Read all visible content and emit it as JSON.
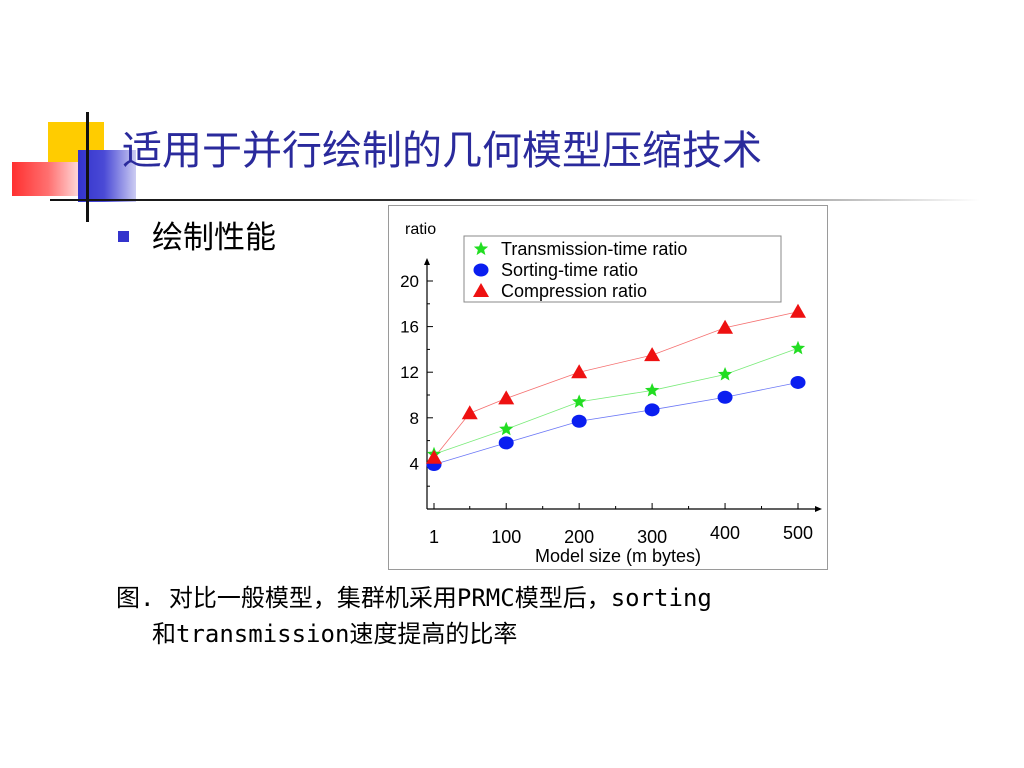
{
  "slide": {
    "title": "适用于并行绘制的几何模型压缩技术",
    "bullet": "绘制性能",
    "caption_line1": "图. 对比一般模型，集群机采用PRMC模型后，sorting",
    "caption_line2": "和transmission速度提高的比率"
  },
  "colors": {
    "title": "#2a2a9c",
    "bullet": "#3333cc",
    "deco_yellow": "#ffcc00",
    "deco_blue": "#3333cc",
    "deco_red": "#ff3030"
  },
  "chart_data": {
    "type": "scatter",
    "ylabel": "ratio",
    "xlabel": "Model  size (m bytes)",
    "x_ticks": [
      "1",
      "100",
      "200",
      "300",
      "400",
      "500"
    ],
    "y_ticks": [
      "4",
      "8",
      "12",
      "16",
      "20"
    ],
    "ylim": [
      0,
      22
    ],
    "xlim": [
      1,
      500
    ],
    "legend": "top-right",
    "grid": false,
    "series": [
      {
        "name": "Transmission-time ratio",
        "marker": "star",
        "color": "#22dd22",
        "points": [
          [
            1,
            4.8
          ],
          [
            100,
            7.0
          ],
          [
            200,
            9.4
          ],
          [
            300,
            10.4
          ],
          [
            400,
            11.8
          ],
          [
            500,
            14.1
          ]
        ]
      },
      {
        "name": "Sorting-time ratio",
        "marker": "circle",
        "color": "#0a1ef0",
        "points": [
          [
            1,
            3.9
          ],
          [
            100,
            5.8
          ],
          [
            200,
            7.7
          ],
          [
            300,
            8.7
          ],
          [
            400,
            9.8
          ],
          [
            500,
            11.1
          ]
        ]
      },
      {
        "name": "Compression ratio",
        "marker": "triangle",
        "color": "#ee1111",
        "points": [
          [
            1,
            4.5
          ],
          [
            50,
            8.4
          ],
          [
            100,
            9.7
          ],
          [
            200,
            12.0
          ],
          [
            300,
            13.5
          ],
          [
            400,
            15.9
          ],
          [
            500,
            17.3
          ]
        ]
      }
    ]
  }
}
